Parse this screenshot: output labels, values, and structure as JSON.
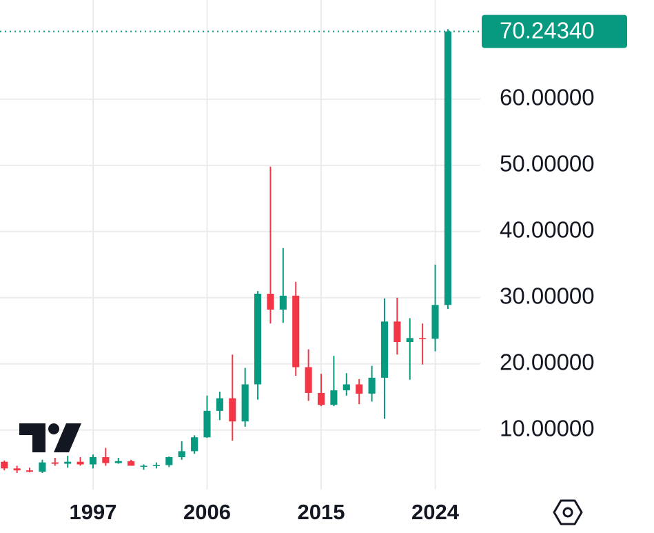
{
  "chart_data": {
    "type": "candlestick",
    "x": [
      1990,
      1991,
      1992,
      1993,
      1994,
      1995,
      1996,
      1997,
      1998,
      1999,
      2000,
      2001,
      2002,
      2003,
      2004,
      2005,
      2006,
      2007,
      2008,
      2009,
      2010,
      2011,
      2012,
      2013,
      2014,
      2015,
      2016,
      2017,
      2018,
      2019,
      2020,
      2021,
      2022,
      2023,
      2024,
      2025
    ],
    "open": [
      5.2,
      4.2,
      3.9,
      3.7,
      5.1,
      4.9,
      5.2,
      4.8,
      5.9,
      5.0,
      5.3,
      4.6,
      4.6,
      4.7,
      5.9,
      6.8,
      8.9,
      12.9,
      14.8,
      11.3,
      16.9,
      30.6,
      28.2,
      30.3,
      19.5,
      15.6,
      13.8,
      16.0,
      16.9,
      15.5,
      17.9,
      26.4,
      23.3,
      23.9,
      23.8,
      28.9
    ],
    "high": [
      5.4,
      4.6,
      4.3,
      5.5,
      5.8,
      6.1,
      5.9,
      6.3,
      7.3,
      5.8,
      5.5,
      4.8,
      5.1,
      6.0,
      8.3,
      9.2,
      15.2,
      15.8,
      21.4,
      19.4,
      31.0,
      49.8,
      37.5,
      32.4,
      22.2,
      18.5,
      21.2,
      18.6,
      17.7,
      19.7,
      29.9,
      30.0,
      26.9,
      26.1,
      35.0,
      70.6
    ],
    "low": [
      3.9,
      3.5,
      3.6,
      3.5,
      4.6,
      4.3,
      4.6,
      4.2,
      4.6,
      4.9,
      4.6,
      4.0,
      4.2,
      4.4,
      5.5,
      6.4,
      8.8,
      11.5,
      8.4,
      10.5,
      14.6,
      26.1,
      26.2,
      18.2,
      14.4,
      13.6,
      13.6,
      15.2,
      13.9,
      14.3,
      11.7,
      21.4,
      17.6,
      19.9,
      21.9,
      28.3
    ],
    "close": [
      4.2,
      3.9,
      3.7,
      5.1,
      4.9,
      5.2,
      4.8,
      5.9,
      5.0,
      5.3,
      4.6,
      4.6,
      4.7,
      5.9,
      6.8,
      8.9,
      12.9,
      14.8,
      11.3,
      16.9,
      30.6,
      28.2,
      30.3,
      19.5,
      15.6,
      13.8,
      16.0,
      16.9,
      15.5,
      17.9,
      26.4,
      23.3,
      23.9,
      23.8,
      28.9,
      70.2434
    ],
    "up_color": "#089981",
    "down_color": "#f23645",
    "last_price": {
      "value": 70.2434,
      "label": "70.24340"
    },
    "xlim": [
      1989.66,
      2027.56
    ],
    "xticks": [
      1997,
      2006,
      2015,
      2024
    ],
    "ylim": [
      1,
      75
    ],
    "yticks": [
      {
        "value": 10,
        "label": "10.00000"
      },
      {
        "value": 20,
        "label": "20.00000"
      },
      {
        "value": 30,
        "label": "30.00000"
      },
      {
        "value": 40,
        "label": "40.00000"
      },
      {
        "value": 50,
        "label": "50.00000"
      },
      {
        "value": 60,
        "label": "60.00000"
      }
    ],
    "grid": true
  }
}
